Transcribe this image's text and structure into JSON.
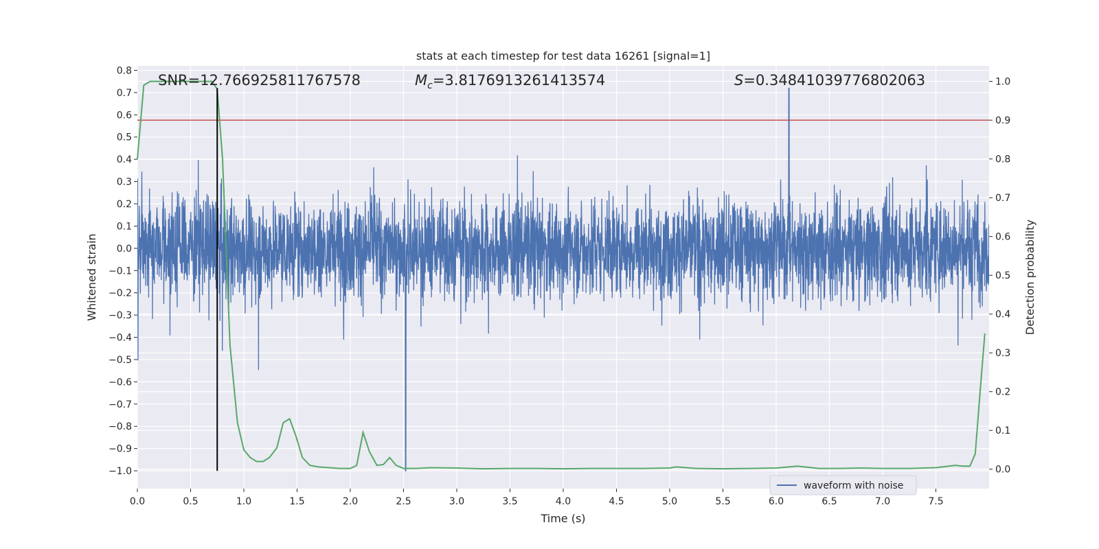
{
  "chart_data": {
    "type": "line",
    "title": "stats at each timestep for test data 16261 [signal=1]",
    "xlabel": "Time (s)",
    "ylabel_left": "Whitened strain",
    "ylabel_right": "Detection probability",
    "xlim": [
      0.0,
      8.0
    ],
    "ylim_left": [
      -1.08,
      0.82
    ],
    "ylim_right": [
      -0.05,
      1.04
    ],
    "grid": true,
    "x_ticks": [
      "0.0",
      "0.5",
      "1.0",
      "1.5",
      "2.0",
      "2.5",
      "3.0",
      "3.5",
      "4.0",
      "4.5",
      "5.0",
      "5.5",
      "6.0",
      "6.5",
      "7.0",
      "7.5"
    ],
    "x_tick_values": [
      0.0,
      0.5,
      1.0,
      1.5,
      2.0,
      2.5,
      3.0,
      3.5,
      4.0,
      4.5,
      5.0,
      5.5,
      6.0,
      6.5,
      7.0,
      7.5
    ],
    "y_left_ticks": [
      "0.8",
      "0.7",
      "0.6",
      "0.5",
      "0.4",
      "0.3",
      "0.2",
      "0.1",
      "0.0",
      "−0.1",
      "−0.2",
      "−0.3",
      "−0.4",
      "−0.5",
      "−0.6",
      "−0.7",
      "−0.8",
      "−0.9",
      "−1.0"
    ],
    "y_left_tick_values": [
      0.8,
      0.7,
      0.6,
      0.5,
      0.4,
      0.3,
      0.2,
      0.1,
      0.0,
      -0.1,
      -0.2,
      -0.3,
      -0.4,
      -0.5,
      -0.6,
      -0.7,
      -0.8,
      -0.9,
      -1.0
    ],
    "y_right_ticks": [
      "1.0",
      "0.9",
      "0.8",
      "0.7",
      "0.6",
      "0.5",
      "0.4",
      "0.3",
      "0.2",
      "0.1",
      "0.0"
    ],
    "y_right_tick_values": [
      1.0,
      0.9,
      0.8,
      0.7,
      0.6,
      0.5,
      0.4,
      0.3,
      0.2,
      0.1,
      0.0
    ],
    "annotations": {
      "snr": "SNR=12.766925811767578",
      "mc_symbol": "M",
      "mc_sub": "c",
      "mc_value": "=3.8176913261413574",
      "s_symbol": "S",
      "s_value": "=0.34841039776802063"
    },
    "legend": {
      "label": "waveform with noise",
      "position": "lower-right"
    },
    "threshold": {
      "value": 0.9,
      "axis": "right",
      "color": "#c44e52"
    },
    "marker_line": {
      "x": 0.75,
      "y_from": -1.0,
      "y_to": 0.72,
      "color": "#000000"
    },
    "waveform": {
      "name": "waveform with noise",
      "color": "#4c72b0",
      "noise_amplitude": 0.45,
      "min_value": -1.0,
      "min_at": 2.52,
      "max_value": 0.72,
      "max_at": 6.12
    },
    "series": [
      {
        "name": "detection probability",
        "axis": "right",
        "color": "#55a868",
        "x": [
          0.0,
          0.06,
          0.12,
          0.2,
          0.3,
          0.4,
          0.5,
          0.6,
          0.7,
          0.75,
          0.8,
          0.87,
          0.94,
          1.0,
          1.06,
          1.12,
          1.18,
          1.24,
          1.31,
          1.37,
          1.43,
          1.49,
          1.55,
          1.62,
          1.7,
          1.8,
          1.9,
          2.0,
          2.06,
          2.12,
          2.18,
          2.25,
          2.31,
          2.37,
          2.43,
          2.5,
          2.62,
          2.75,
          3.0,
          3.25,
          3.5,
          3.75,
          4.0,
          4.25,
          4.5,
          4.75,
          5.0,
          5.06,
          5.25,
          5.5,
          5.75,
          6.0,
          6.2,
          6.4,
          6.6,
          6.8,
          7.0,
          7.25,
          7.5,
          7.68,
          7.75,
          7.82,
          7.87,
          7.93,
          7.96
        ],
        "values": [
          0.8,
          0.99,
          1.0,
          1.0,
          1.0,
          1.0,
          1.0,
          1.0,
          1.0,
          0.98,
          0.8,
          0.32,
          0.12,
          0.05,
          0.03,
          0.02,
          0.02,
          0.03,
          0.055,
          0.12,
          0.13,
          0.085,
          0.03,
          0.01,
          0.006,
          0.004,
          0.002,
          0.002,
          0.01,
          0.095,
          0.045,
          0.01,
          0.012,
          0.03,
          0.01,
          0.002,
          0.002,
          0.004,
          0.003,
          0.001,
          0.002,
          0.002,
          0.001,
          0.002,
          0.002,
          0.002,
          0.003,
          0.006,
          0.002,
          0.001,
          0.002,
          0.003,
          0.008,
          0.002,
          0.002,
          0.003,
          0.002,
          0.002,
          0.004,
          0.01,
          0.008,
          0.008,
          0.04,
          0.25,
          0.35
        ]
      }
    ]
  }
}
